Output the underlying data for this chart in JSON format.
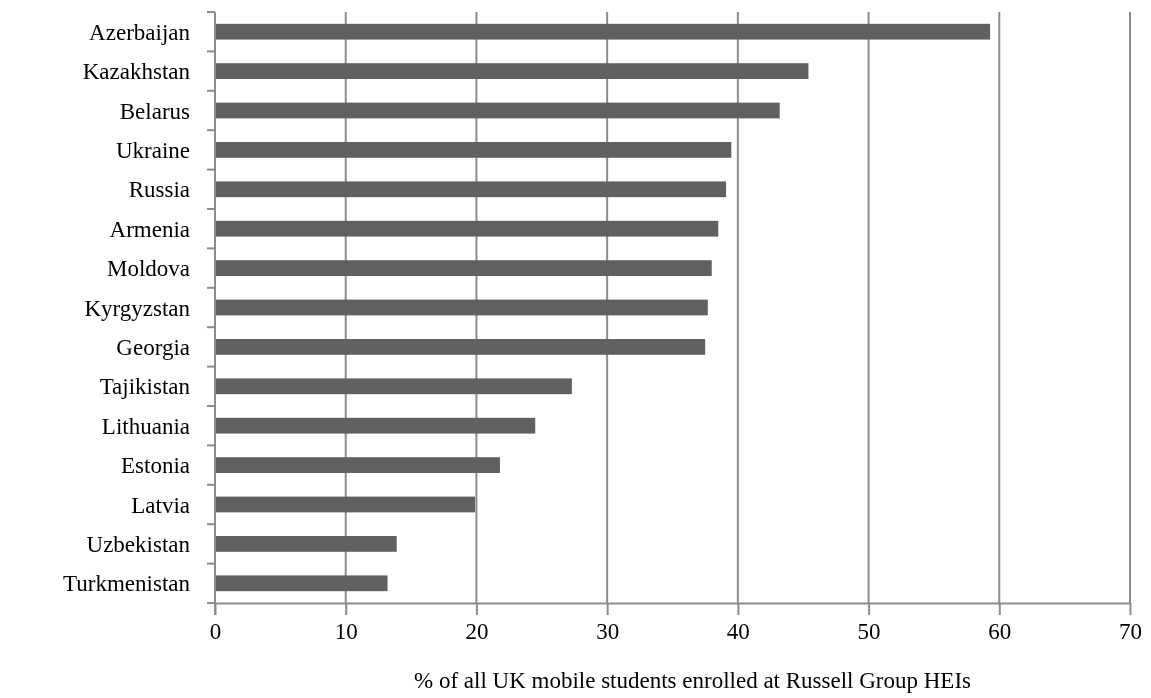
{
  "chart_data": {
    "type": "bar",
    "orientation": "horizontal",
    "xlabel": "% of all UK mobile students enrolled at Russell Group HEIs",
    "categories": [
      "Azerbaijan",
      "Kazakhstan",
      "Belarus",
      "Ukraine",
      "Russia",
      "Armenia",
      "Moldova",
      "Kyrgyzstan",
      "Georgia",
      "Tajikistan",
      "Lithuania",
      "Estonia",
      "Latvia",
      "Uzbekistan",
      "Turkmenistan"
    ],
    "values": [
      59.3,
      45.4,
      43.2,
      39.5,
      39.1,
      38.5,
      38.0,
      37.7,
      37.5,
      27.3,
      24.5,
      21.8,
      19.9,
      13.9,
      13.2
    ],
    "color": "#606060",
    "xlim": [
      0,
      70
    ],
    "xticks": [
      0,
      10,
      20,
      30,
      40,
      50,
      60,
      70
    ],
    "grid": "x"
  }
}
